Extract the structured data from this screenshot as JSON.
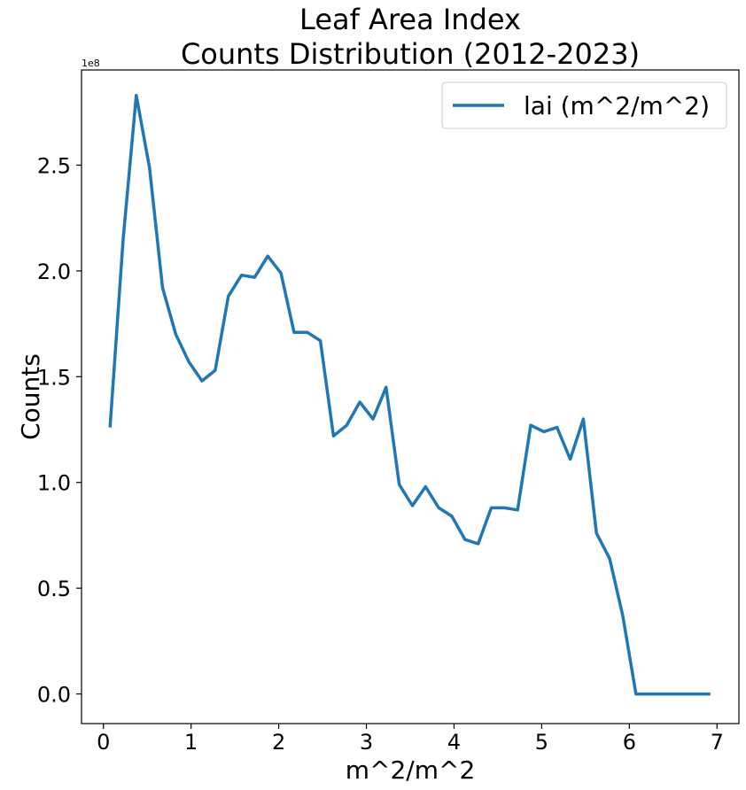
{
  "chart_data": {
    "type": "line",
    "title": [
      "Leaf Area Index",
      "Counts Distribution (2012-2023)"
    ],
    "xlabel": "m^2/m^2",
    "ylabel": "Counts",
    "y_offset_label": "1e8",
    "xlim": [
      -0.25,
      7.25
    ],
    "ylim": [
      -14000000.0,
      295000000.0
    ],
    "x_ticks": [
      0,
      1,
      2,
      3,
      4,
      5,
      6,
      7
    ],
    "x_tick_labels": [
      "0",
      "1",
      "2",
      "3",
      "4",
      "5",
      "6",
      "7"
    ],
    "y_ticks": [
      0,
      50000000.0,
      100000000.0,
      150000000.0,
      200000000.0,
      250000000.0
    ],
    "y_tick_labels": [
      "0.0",
      "0.5",
      "1.0",
      "1.5",
      "2.0",
      "2.5"
    ],
    "grid": false,
    "legend_position": "top-right",
    "line_color": "#1f77b4",
    "series": [
      {
        "name": "lai (m^2/m^2)",
        "x": [
          0.075,
          0.225,
          0.375,
          0.525,
          0.675,
          0.825,
          0.975,
          1.125,
          1.275,
          1.425,
          1.575,
          1.725,
          1.875,
          2.025,
          2.175,
          2.325,
          2.475,
          2.625,
          2.775,
          2.925,
          3.075,
          3.225,
          3.375,
          3.525,
          3.675,
          3.825,
          3.975,
          4.125,
          4.275,
          4.425,
          4.575,
          4.725,
          4.875,
          5.025,
          5.175,
          5.325,
          5.475,
          5.625,
          5.775,
          5.925,
          6.075,
          6.225,
          6.375,
          6.525,
          6.675,
          6.825,
          6.925
        ],
        "values": [
          126000000,
          215000000,
          283000000,
          249000000,
          192000000,
          170000000,
          157000000,
          148000000,
          153000000,
          188000000,
          198000000,
          197000000,
          207000000,
          199000000,
          171000000,
          171000000,
          167000000,
          122000000,
          127000000,
          138000000,
          130000000,
          145000000,
          99000000,
          89000000,
          98000000,
          88000000,
          84000000,
          73000000,
          71000000,
          88000000,
          88000000,
          87000000,
          127000000,
          124000000,
          126000000,
          111000000,
          130000000,
          76000000,
          64000000,
          37000000,
          0,
          0,
          0,
          0,
          0,
          0,
          0
        ]
      }
    ]
  }
}
